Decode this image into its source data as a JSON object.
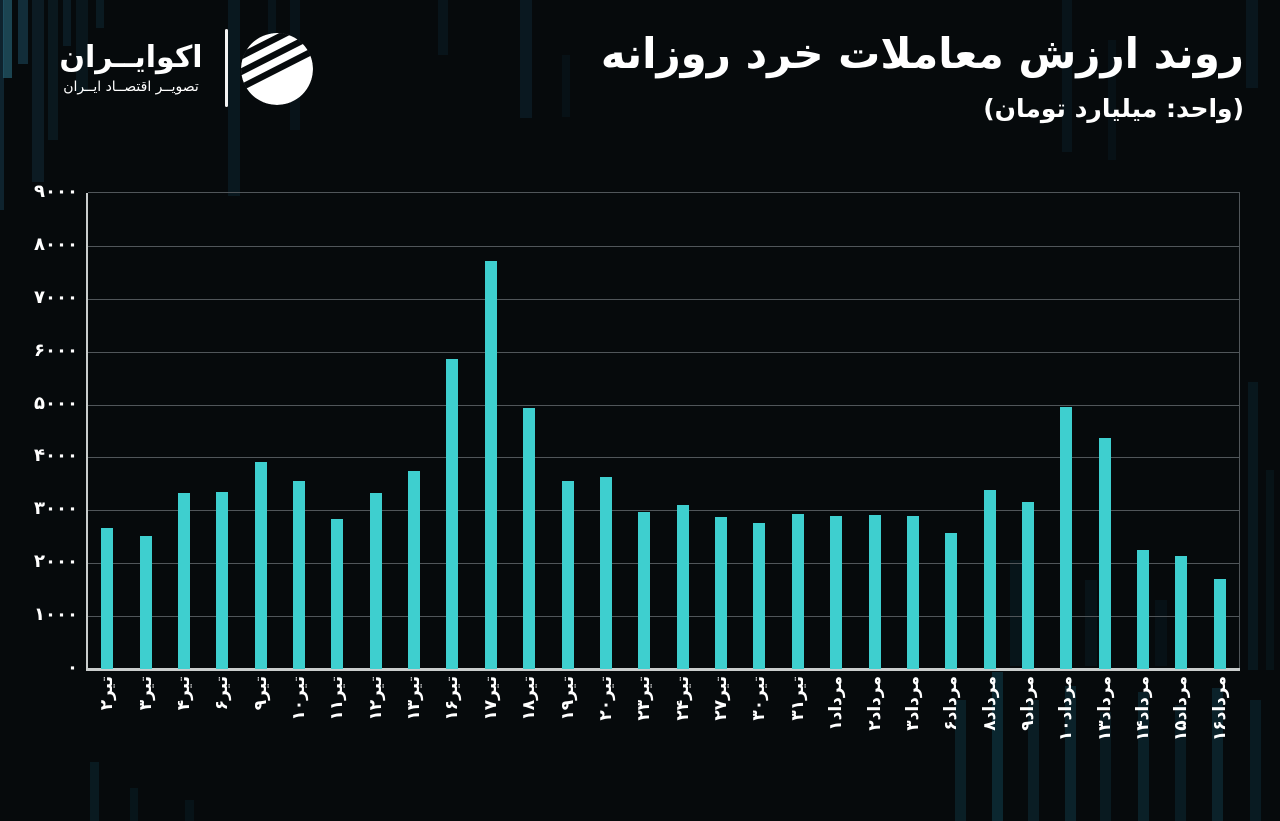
{
  "brand": {
    "name": "اکوایــران",
    "tagline": "تصویــر اقتصــاد ایــران"
  },
  "header": {
    "title": "روند ارزش معاملات خرد روزانه",
    "unit": "(واحد: میلیارد تومان)"
  },
  "chart_data": {
    "type": "bar",
    "title": "روند ارزش معاملات خرد روزانه",
    "unit_label": "(واحد: میلیارد تومان)",
    "bar_color": "#3ecfcf",
    "background_color": "#060a0c",
    "gridline_color": "#50565a",
    "axis_color": "#c9cdcd",
    "grid": true,
    "legend": false,
    "xlabel": "",
    "ylabel": "",
    "ylim": [
      0,
      9000
    ],
    "ytick_step": 1000,
    "yticks": [
      {
        "label": "۹۰۰۰",
        "value": 9000
      },
      {
        "label": "۸۰۰۰",
        "value": 8000
      },
      {
        "label": "۷۰۰۰",
        "value": 7000
      },
      {
        "label": "۶۰۰۰",
        "value": 6000
      },
      {
        "label": "۵۰۰۰",
        "value": 5000
      },
      {
        "label": "۴۰۰۰",
        "value": 4000
      },
      {
        "label": "۳۰۰۰",
        "value": 3000
      },
      {
        "label": "۲۰۰۰",
        "value": 2000
      },
      {
        "label": "۱۰۰۰",
        "value": 1000
      },
      {
        "label": "۰",
        "value": 0
      }
    ],
    "categories": [
      "تیر۲",
      "تیر۳",
      "تیر۴",
      "تیر۶",
      "تیر۹",
      "تیر۱۰",
      "تیر۱۱",
      "تیر۱۲",
      "تیر۱۳",
      "تیر۱۶",
      "تیر۱۷",
      "تیر۱۸",
      "تیر۱۹",
      "تیر۲۰",
      "تیر۲۳",
      "تیر۲۴",
      "تیر۲۷",
      "تیر۳۰",
      "تیر۳۱",
      "مرداد۱",
      "مرداد۲",
      "مرداد۳",
      "مرداد۶",
      "مرداد۸",
      "مرداد۹",
      "مرداد۱۰",
      "مرداد۱۳",
      "مرداد۱۴",
      "مرداد۱۵",
      "مرداد۱۶"
    ],
    "values": [
      2660,
      2520,
      3330,
      3340,
      3910,
      3550,
      2840,
      3330,
      3740,
      5870,
      7710,
      4930,
      3560,
      3640,
      2970,
      3100,
      2870,
      2770,
      2940,
      2900,
      2920,
      2900,
      2570,
      3380,
      3160,
      4960,
      4370,
      2250,
      2140,
      1700
    ]
  }
}
